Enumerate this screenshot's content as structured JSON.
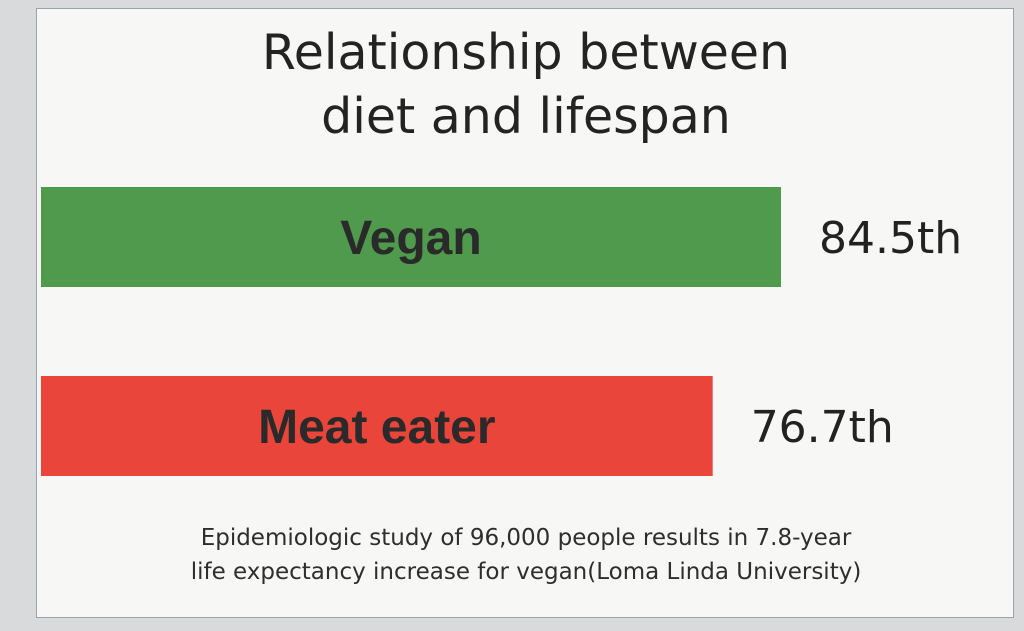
{
  "chart_data": {
    "type": "bar",
    "orientation": "horizontal",
    "title_lines": [
      "Relationship between",
      "diet and lifespan"
    ],
    "categories": [
      "Vegan",
      "Meat eater"
    ],
    "values": [
      84.5,
      76.7
    ],
    "value_labels": [
      "84.5th",
      "76.7th"
    ],
    "colors": [
      "#4f9a4c",
      "#e9453a"
    ],
    "footnote_lines": [
      "Epidemiologic study of 96,000 people results in 7.8-year",
      "life expectancy increase for vegan(Loma Linda University)"
    ]
  }
}
